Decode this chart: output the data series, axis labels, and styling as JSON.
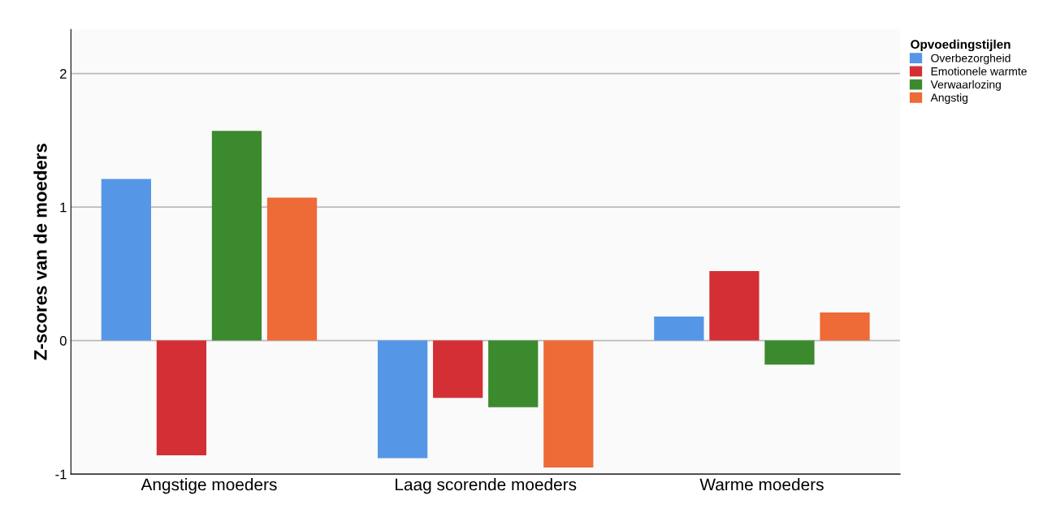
{
  "chart_data": {
    "type": "bar",
    "ylabel": "Z-scores van de moeders",
    "categories": [
      "Angstige moeders",
      "Laag scorende moeders",
      "Warme moeders"
    ],
    "series": [
      {
        "name": "Overbezorgheid",
        "color": "#5596e6",
        "values": [
          1.21,
          -0.88,
          0.18
        ]
      },
      {
        "name": "Emotionele warmte",
        "color": "#d42f35",
        "values": [
          -0.86,
          -0.43,
          0.52
        ]
      },
      {
        "name": "Verwaarlozing",
        "color": "#3c8a2e",
        "values": [
          1.57,
          -0.5,
          -0.18
        ]
      },
      {
        "name": "Angstig",
        "color": "#ee6a37",
        "values": [
          1.07,
          -0.95,
          0.21
        ]
      }
    ],
    "legend_title": "Opvoedingstijlen",
    "legend": "top right",
    "ylim": [
      -1,
      2.33
    ],
    "yticks": [
      -1,
      0,
      1,
      2
    ],
    "grid": "y"
  }
}
